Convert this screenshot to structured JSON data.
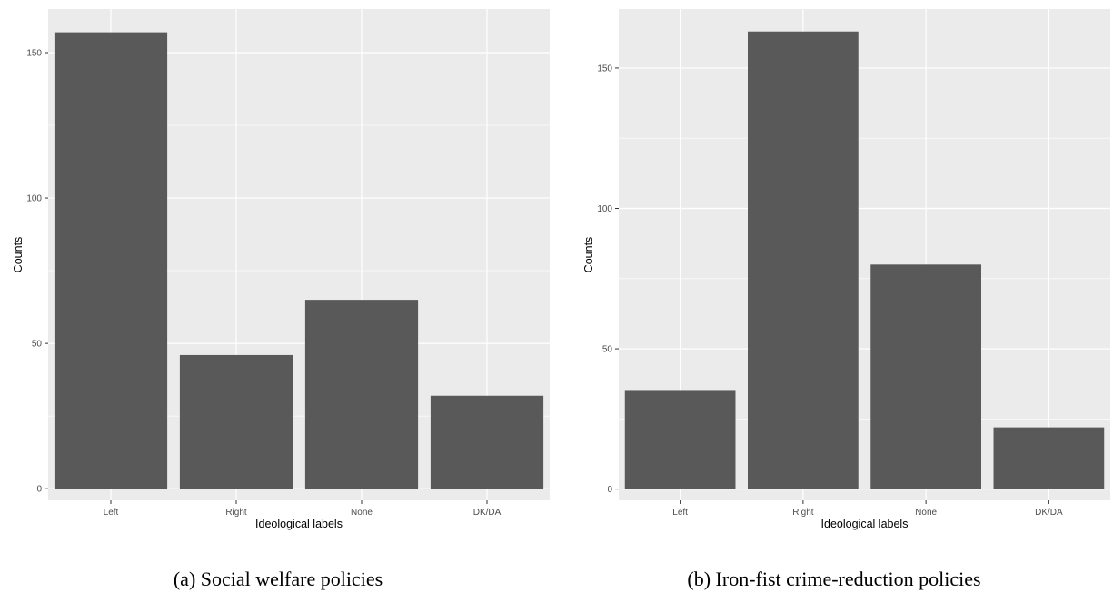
{
  "captions": [
    "(a)  Social welfare policies",
    "(b)  Iron-fist crime-reduction policies"
  ],
  "colors": {
    "panel_background": "#ebebeb",
    "grid_major": "#ffffff",
    "bar_fill": "#595959",
    "tick_text": "#4d4d4d"
  },
  "chart_data": [
    {
      "type": "bar",
      "title": "",
      "xlabel": "Ideological labels",
      "ylabel": "Counts",
      "categories": [
        "Left",
        "Right",
        "None",
        "DK/DA"
      ],
      "values": [
        157,
        46,
        65,
        32
      ],
      "ylim": [
        -4,
        165
      ],
      "yticks": [
        0,
        50,
        100,
        150
      ],
      "grid": true,
      "legend": "none"
    },
    {
      "type": "bar",
      "title": "",
      "xlabel": "Ideological labels",
      "ylabel": "Counts",
      "categories": [
        "Left",
        "Right",
        "None",
        "DK/DA"
      ],
      "values": [
        35,
        163,
        80,
        22
      ],
      "ylim": [
        -4,
        171
      ],
      "yticks": [
        0,
        50,
        100,
        150
      ],
      "grid": true,
      "legend": "none"
    }
  ]
}
